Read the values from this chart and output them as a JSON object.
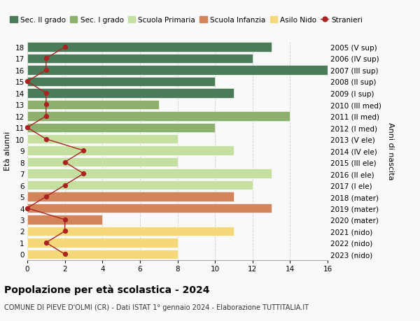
{
  "ages": [
    18,
    17,
    16,
    15,
    14,
    13,
    12,
    11,
    10,
    9,
    8,
    7,
    6,
    5,
    4,
    3,
    2,
    1,
    0
  ],
  "bar_values": [
    13,
    12,
    16,
    10,
    11,
    7,
    14,
    10,
    8,
    11,
    8,
    13,
    12,
    11,
    13,
    4,
    11,
    8,
    8
  ],
  "bar_colors": [
    "#4a7c59",
    "#4a7c59",
    "#4a7c59",
    "#4a7c59",
    "#4a7c59",
    "#8db06e",
    "#8db06e",
    "#8db06e",
    "#c5dfa0",
    "#c5dfa0",
    "#c5dfa0",
    "#c5dfa0",
    "#c5dfa0",
    "#d4845a",
    "#d4845a",
    "#d4845a",
    "#f5d87a",
    "#f5d87a",
    "#f5d87a"
  ],
  "right_labels": [
    "2005 (V sup)",
    "2006 (IV sup)",
    "2007 (III sup)",
    "2008 (II sup)",
    "2009 (I sup)",
    "2010 (III med)",
    "2011 (II med)",
    "2012 (I med)",
    "2013 (V ele)",
    "2014 (IV ele)",
    "2015 (III ele)",
    "2016 (II ele)",
    "2017 (I ele)",
    "2018 (mater)",
    "2019 (mater)",
    "2020 (mater)",
    "2021 (nido)",
    "2022 (nido)",
    "2023 (nido)"
  ],
  "stranieri_values": [
    2,
    1,
    1,
    0,
    1,
    1,
    1,
    0,
    1,
    3,
    2,
    3,
    2,
    1,
    0,
    2,
    2,
    1,
    2
  ],
  "stranieri_color": "#aa2222",
  "legend_entries": [
    {
      "label": "Sec. II grado",
      "color": "#4a7c59"
    },
    {
      "label": "Sec. I grado",
      "color": "#8db06e"
    },
    {
      "label": "Scuola Primaria",
      "color": "#c5dfa0"
    },
    {
      "label": "Scuola Infanzia",
      "color": "#d4845a"
    },
    {
      "label": "Asilo Nido",
      "color": "#f5d87a"
    },
    {
      "label": "Stranieri",
      "color": "#aa2222"
    }
  ],
  "ylabel_left": "Età alunni",
  "ylabel_right": "Anni di nascita",
  "xlim": [
    0,
    16
  ],
  "xticks": [
    0,
    2,
    4,
    6,
    8,
    10,
    12,
    14,
    16
  ],
  "title": "Popolazione per età scolastica - 2024",
  "subtitle": "COMUNE DI PIEVE D'OLMI (CR) - Dati ISTAT 1° gennaio 2024 - Elaborazione TUTTITALIA.IT",
  "bg_color": "#f9f9f9"
}
